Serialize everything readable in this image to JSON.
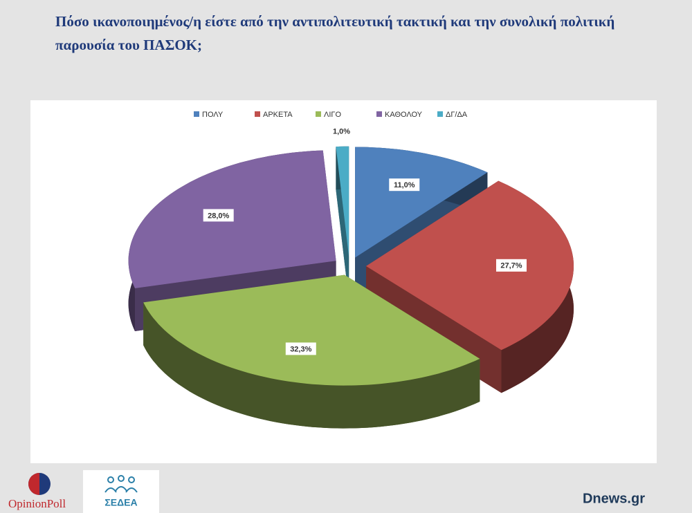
{
  "chart_data": {
    "type": "pie3d",
    "title": "Πόσο ικανοποιημένος/η είστε από την αντιπολιτευτική τακτική και την συνολική πολιτική παρουσία του ΠΑΣΟΚ;",
    "categories": [
      "ΠΟΛΥ",
      "ΑΡΚΕΤΑ",
      "ΛΙΓΟ",
      "ΚΑΘΟΛΟΥ",
      "ΔΓ/ΔΑ"
    ],
    "values": [
      11.0,
      27.7,
      32.3,
      28.0,
      1.0
    ],
    "value_labels": [
      "11,0%",
      "27,7%",
      "32,3%",
      "28,0%",
      "1,0%"
    ],
    "colors": [
      "#4f81bd",
      "#c0504d",
      "#9bbb59",
      "#8064a2",
      "#4bacc6"
    ],
    "legend": "top"
  },
  "footer": {
    "logo_left": "OpinionPoll",
    "logo_middle": "ΣΕΔΕΑ",
    "source": "Dnews.gr"
  }
}
